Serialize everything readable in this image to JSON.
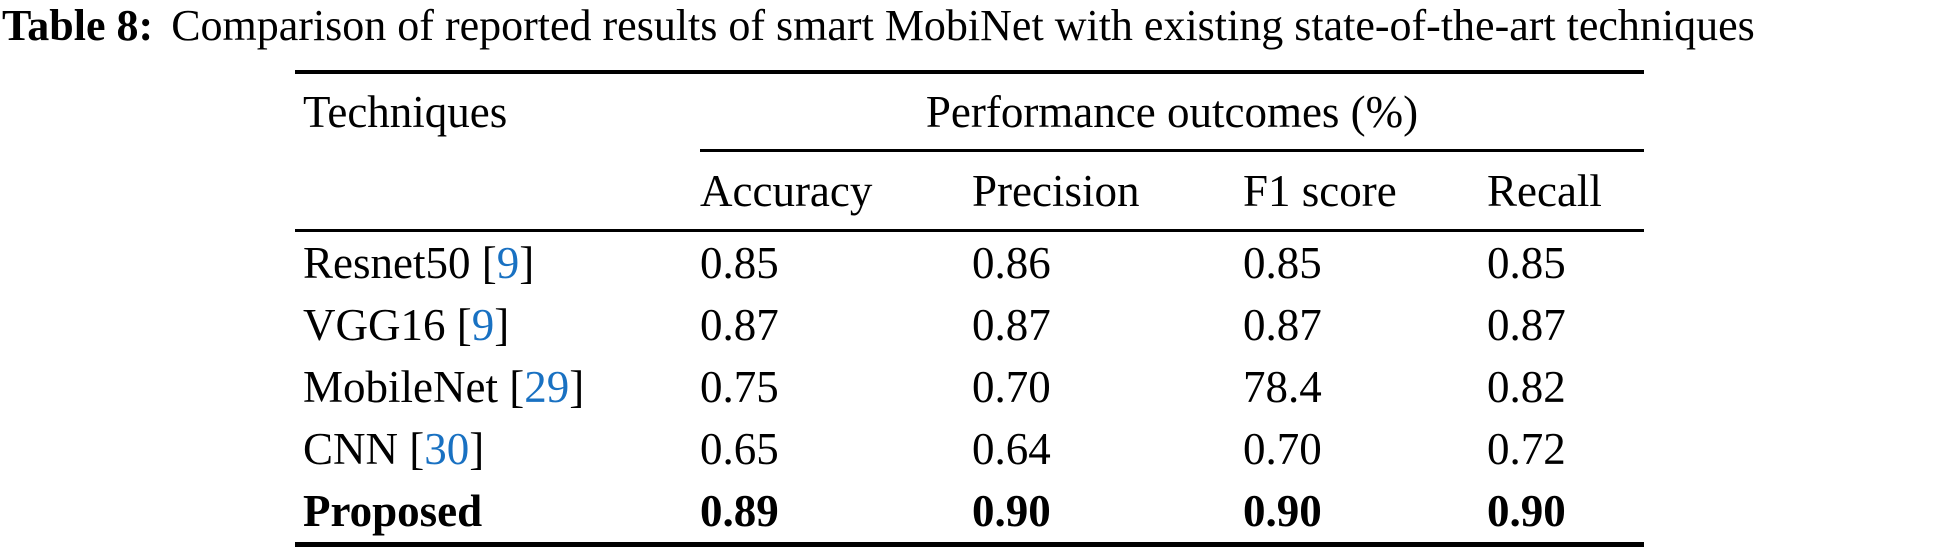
{
  "caption": {
    "label": "Table 8:",
    "text": "Comparison of reported results of smart MobiNet with existing state-of-the-art techniques"
  },
  "table": {
    "col1_header": "Techniques",
    "span_header": "Performance outcomes (%)",
    "sub_headers": [
      "Accuracy",
      "Precision",
      "F1 score",
      "Recall"
    ],
    "rows": [
      {
        "name": "Resnet50",
        "cite_open": " [",
        "cite": "9",
        "cite_close": "]",
        "accuracy": "0.85",
        "precision": "0.86",
        "f1": "0.85",
        "recall": "0.85"
      },
      {
        "name": "VGG16",
        "cite_open": " [",
        "cite": "9",
        "cite_close": "]",
        "accuracy": "0.87",
        "precision": "0.87",
        "f1": "0.87",
        "recall": "0.87"
      },
      {
        "name": "MobileNet",
        "cite_open": " [",
        "cite": "29",
        "cite_close": "]",
        "accuracy": "0.75",
        "precision": "0.70",
        "f1": "78.4",
        "recall": "0.82"
      },
      {
        "name": "CNN",
        "cite_open": " [",
        "cite": "30",
        "cite_close": "]",
        "accuracy": "0.65",
        "precision": "0.64",
        "f1": "0.70",
        "recall": "0.72"
      },
      {
        "name": "Proposed",
        "cite_open": "",
        "cite": "",
        "cite_close": "",
        "accuracy": "0.89",
        "precision": "0.90",
        "f1": "0.90",
        "recall": "0.90"
      }
    ]
  },
  "colors": {
    "citation_blue": "#1971c2",
    "text": "#000000"
  }
}
